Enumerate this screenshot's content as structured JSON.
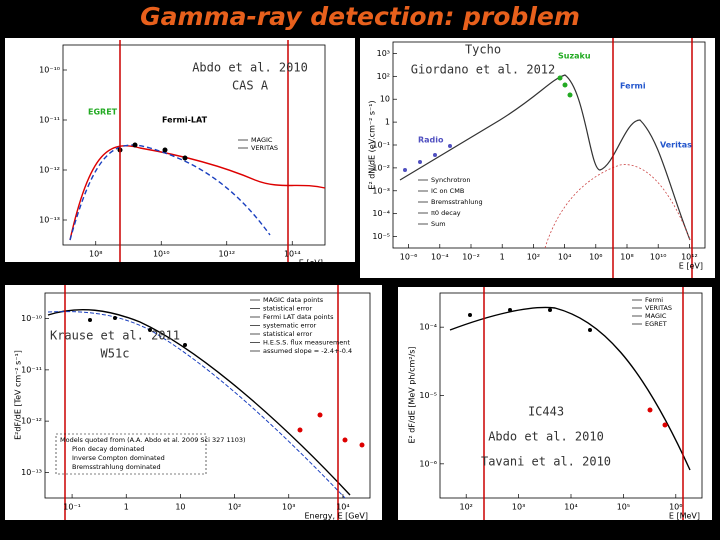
{
  "title": "Gamma-ray detection: problem",
  "panels": [
    {
      "annotation": [
        "Abdo et al. 2010",
        "CAS A"
      ],
      "labels": [
        "EGRET",
        "Fermi-LAT"
      ],
      "legend": [
        "MAGIC",
        "VERITAS"
      ],
      "x_label": "E [eV]",
      "x_ticks": [
        "10⁸",
        "10¹⁰",
        "10¹²",
        "10¹⁴"
      ],
      "y_ticks": [
        "10⁻¹⁰",
        "10⁻¹¹",
        "10⁻¹²",
        "10⁻¹³"
      ]
    },
    {
      "annotation": [
        "Tycho",
        "Giordano et al. 2012"
      ],
      "labels": [
        "Radio",
        "Suzaku",
        "Fermi",
        "Veritas"
      ],
      "legend": [
        "Synchrotron",
        "IC on CMB",
        "Bremsstrahlung",
        "π0 decay",
        "Sum"
      ],
      "x_label": "E [eV]",
      "y_label": "E² dN/dE (eV.cm⁻² s⁻¹)",
      "x_ticks": [
        "10⁻⁶",
        "10⁻⁴",
        "10⁻²",
        "1",
        "10²",
        "10⁴",
        "10⁶",
        "10⁸",
        "10¹⁰",
        "10¹²"
      ],
      "y_ticks": [
        "10³",
        "10²",
        "10",
        "1",
        "10⁻¹",
        "10⁻²",
        "10⁻³",
        "10⁻⁴",
        "10⁻⁵"
      ]
    },
    {
      "annotation": [
        "Krause et al. 2011",
        "W51c"
      ],
      "legend": [
        "MAGIC data points",
        "statistical error",
        "Fermi LAT data points",
        "systematic error",
        "statistical error",
        "H.E.S.S. flux measurement",
        "assumed slope = -2.4+-0.4"
      ],
      "models": [
        "Models quoted from (A.A. Abdo et al. 2009 Sci 327 1103)",
        "Pion decay dominated",
        "Inverse Compton dominated",
        "Bremsstrahlung dominated"
      ],
      "x_label": "Energy, E [GeV]",
      "y_label": "E²dF/dE [TeV cm⁻² s⁻¹]",
      "x_ticks": [
        "10⁻¹",
        "1",
        "10",
        "10²",
        "10³",
        "10⁴"
      ],
      "y_ticks": [
        "10⁻¹⁰",
        "10⁻¹¹",
        "10⁻¹²",
        "10⁻¹³"
      ]
    },
    {
      "annotation": [
        "IC443",
        "Abdo et al. 2010",
        "Tavani et al. 2010"
      ],
      "legend": [
        "Fermi",
        "VERITAS",
        "MAGIC",
        "EGRET"
      ],
      "x_label": "E [MeV]",
      "y_label": "E² dF/dE [MeV ph/cm²/s]",
      "x_ticks": [
        "10²",
        "10³",
        "10⁴",
        "10⁵",
        "10⁶"
      ],
      "y_ticks": [
        "10⁻⁴",
        "10⁻⁵",
        "10⁻⁶"
      ]
    }
  ]
}
